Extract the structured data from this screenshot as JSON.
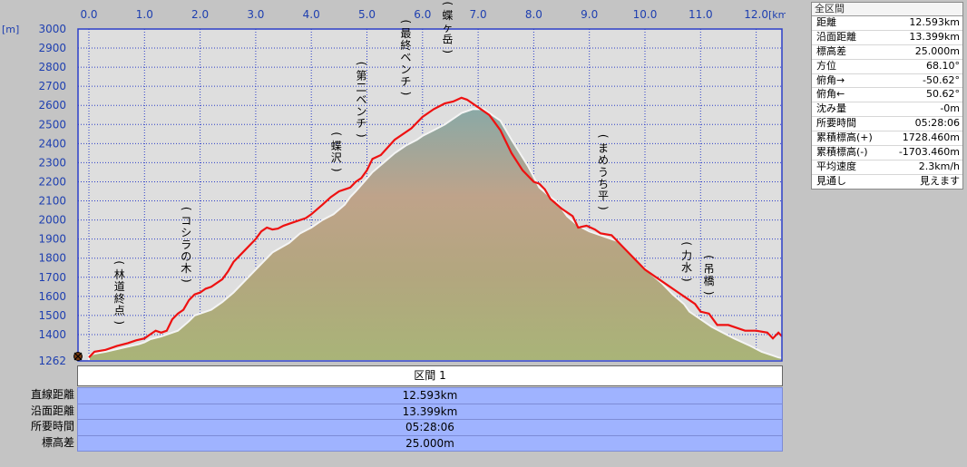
{
  "chart_data": {
    "type": "area",
    "x_unit": "[km]",
    "y_unit": "[m]",
    "x_ticks": [
      "0.0",
      "1.0",
      "2.0",
      "3.0",
      "4.0",
      "5.0",
      "6.0",
      "7.0",
      "8.0",
      "9.0",
      "10.0",
      "11.0",
      "12.0"
    ],
    "y_ticks": [
      "1262",
      "1400",
      "1500",
      "1600",
      "1700",
      "1800",
      "1900",
      "2000",
      "2100",
      "2200",
      "2300",
      "2400",
      "2500",
      "2600",
      "2700",
      "2800",
      "2900",
      "3000"
    ],
    "xlim": [
      0,
      12.6
    ],
    "ylim": [
      1262,
      3000
    ],
    "series": [
      {
        "x": [
          0.0,
          0.1,
          0.3,
          0.6,
          0.9,
          1.0,
          1.1,
          1.3,
          1.4,
          1.6,
          1.8,
          1.9,
          2.2,
          2.4,
          2.6,
          2.8,
          3.0,
          3.2,
          3.3,
          3.6,
          3.8,
          4.0,
          4.2,
          4.4,
          4.6,
          4.7,
          4.8,
          4.95,
          5.1,
          5.3,
          5.5,
          5.7,
          5.9,
          6.0,
          6.2,
          6.4,
          6.5,
          6.7,
          6.9,
          7.1,
          7.4,
          7.6,
          7.9,
          8.1,
          8.3,
          8.4,
          8.6,
          8.8,
          9.0,
          9.1,
          9.3,
          9.5,
          9.7,
          9.9,
          10.1,
          10.3,
          10.5,
          10.7,
          10.8,
          11.0,
          11.2,
          11.4,
          11.6,
          11.9,
          12.1,
          12.3,
          12.4,
          12.6
        ],
        "y": [
          1290,
          1300,
          1310,
          1330,
          1350,
          1360,
          1375,
          1390,
          1400,
          1420,
          1470,
          1500,
          1530,
          1570,
          1620,
          1680,
          1740,
          1800,
          1830,
          1880,
          1930,
          1960,
          2000,
          2030,
          2080,
          2120,
          2150,
          2200,
          2250,
          2300,
          2350,
          2390,
          2420,
          2440,
          2470,
          2500,
          2520,
          2560,
          2580,
          2580,
          2520,
          2420,
          2280,
          2170,
          2120,
          2100,
          2020,
          1970,
          1940,
          1930,
          1910,
          1890,
          1830,
          1770,
          1720,
          1670,
          1610,
          1560,
          1520,
          1480,
          1440,
          1410,
          1380,
          1340,
          1310,
          1290,
          1280,
          1270
        ]
      },
      {
        "x": [
          0.0,
          0.1,
          0.3,
          0.5,
          0.7,
          0.85,
          1.0,
          1.1,
          1.2,
          1.3,
          1.4,
          1.5,
          1.6,
          1.7,
          1.8,
          1.9,
          2.0,
          2.1,
          2.2,
          2.4,
          2.5,
          2.6,
          2.8,
          3.0,
          3.1,
          3.2,
          3.3,
          3.4,
          3.5,
          3.7,
          3.9,
          4.0,
          4.2,
          4.35,
          4.5,
          4.7,
          4.8,
          4.9,
          5.0,
          5.1,
          5.25,
          5.5,
          5.8,
          6.0,
          6.2,
          6.4,
          6.55,
          6.7,
          6.8,
          7.0,
          7.2,
          7.4,
          7.6,
          7.8,
          8.0,
          8.1,
          8.2,
          8.3,
          8.5,
          8.7,
          8.8,
          8.95,
          9.1,
          9.2,
          9.4,
          9.6,
          9.8,
          10.0,
          10.2,
          10.4,
          10.6,
          10.7,
          10.9,
          11.0,
          11.15,
          11.3,
          11.5,
          11.8,
          12.0,
          12.2,
          12.3,
          12.4,
          12.5,
          12.6
        ],
        "y": [
          1280,
          1310,
          1320,
          1340,
          1355,
          1370,
          1380,
          1400,
          1420,
          1410,
          1420,
          1480,
          1510,
          1530,
          1580,
          1610,
          1620,
          1640,
          1650,
          1690,
          1730,
          1780,
          1840,
          1900,
          1940,
          1960,
          1950,
          1955,
          1970,
          1990,
          2010,
          2030,
          2080,
          2120,
          2150,
          2170,
          2200,
          2220,
          2260,
          2320,
          2340,
          2420,
          2480,
          2540,
          2580,
          2610,
          2620,
          2640,
          2630,
          2590,
          2550,
          2470,
          2350,
          2260,
          2200,
          2190,
          2160,
          2110,
          2060,
          2020,
          1960,
          1970,
          1950,
          1930,
          1920,
          1860,
          1800,
          1740,
          1700,
          1660,
          1620,
          1600,
          1560,
          1520,
          1510,
          1450,
          1450,
          1420,
          1420,
          1410,
          1380,
          1410,
          1380,
          1300
        ]
      }
    ]
  },
  "annotations": [
    {
      "text": "(林道終点)",
      "x": 0.55,
      "y": 1400
    },
    {
      "text": "(コシラの木)",
      "x": 1.75,
      "y": 1620
    },
    {
      "text": "(蝶沢)",
      "x": 4.45,
      "y": 2200
    },
    {
      "text": "(第二ベンチ)",
      "x": 4.9,
      "y": 2380
    },
    {
      "text": "(最終ベンチ)",
      "x": 5.7,
      "y": 2600
    },
    {
      "text": "(蝶ヶ岳)",
      "x": 6.45,
      "y": 2820
    },
    {
      "text": "(まめうち平)",
      "x": 9.25,
      "y": 2000
    },
    {
      "text": "(力水)",
      "x": 10.75,
      "y": 1625
    },
    {
      "text": "(吊橋)",
      "x": 11.15,
      "y": 1555
    }
  ],
  "info_panel": {
    "header": "全区間",
    "rows": [
      {
        "label": "距離",
        "value": "12.593km"
      },
      {
        "label": "沿面距離",
        "value": "13.399km"
      },
      {
        "label": "標高差",
        "value": "25.000m"
      },
      {
        "label": "方位",
        "value": "68.10°"
      },
      {
        "label": "俯角→",
        "value": "-50.62°"
      },
      {
        "label": "俯角←",
        "value": "50.62°"
      },
      {
        "label": "沈み量",
        "value": "-0m"
      },
      {
        "label": "所要時間",
        "value": "05:28:06"
      },
      {
        "label": "累積標高(+)",
        "value": "1728.460m"
      },
      {
        "label": "累積標高(-)",
        "value": "-1703.460m"
      },
      {
        "label": "平均速度",
        "value": "2.3km/h"
      },
      {
        "label": "見通し",
        "value": "見えます"
      }
    ]
  },
  "section": {
    "title": "区間 1",
    "rows": [
      {
        "label": "直線距離",
        "value": "12.593km"
      },
      {
        "label": "沿面距離",
        "value": "13.399km"
      },
      {
        "label": "所要時間",
        "value": "05:28:06"
      },
      {
        "label": "標高差",
        "value": "25.000m"
      }
    ]
  },
  "colors": {
    "background": "#c4c4c4",
    "plot_bg": "#dedede",
    "grid": "#2c3ec8",
    "route_line": "#ee1111",
    "terrain_top": "#8aa9a6",
    "terrain_mid": "#bfa38a",
    "terrain_bottom": "#a9b478",
    "stats_bg": "#9fb3ff"
  }
}
